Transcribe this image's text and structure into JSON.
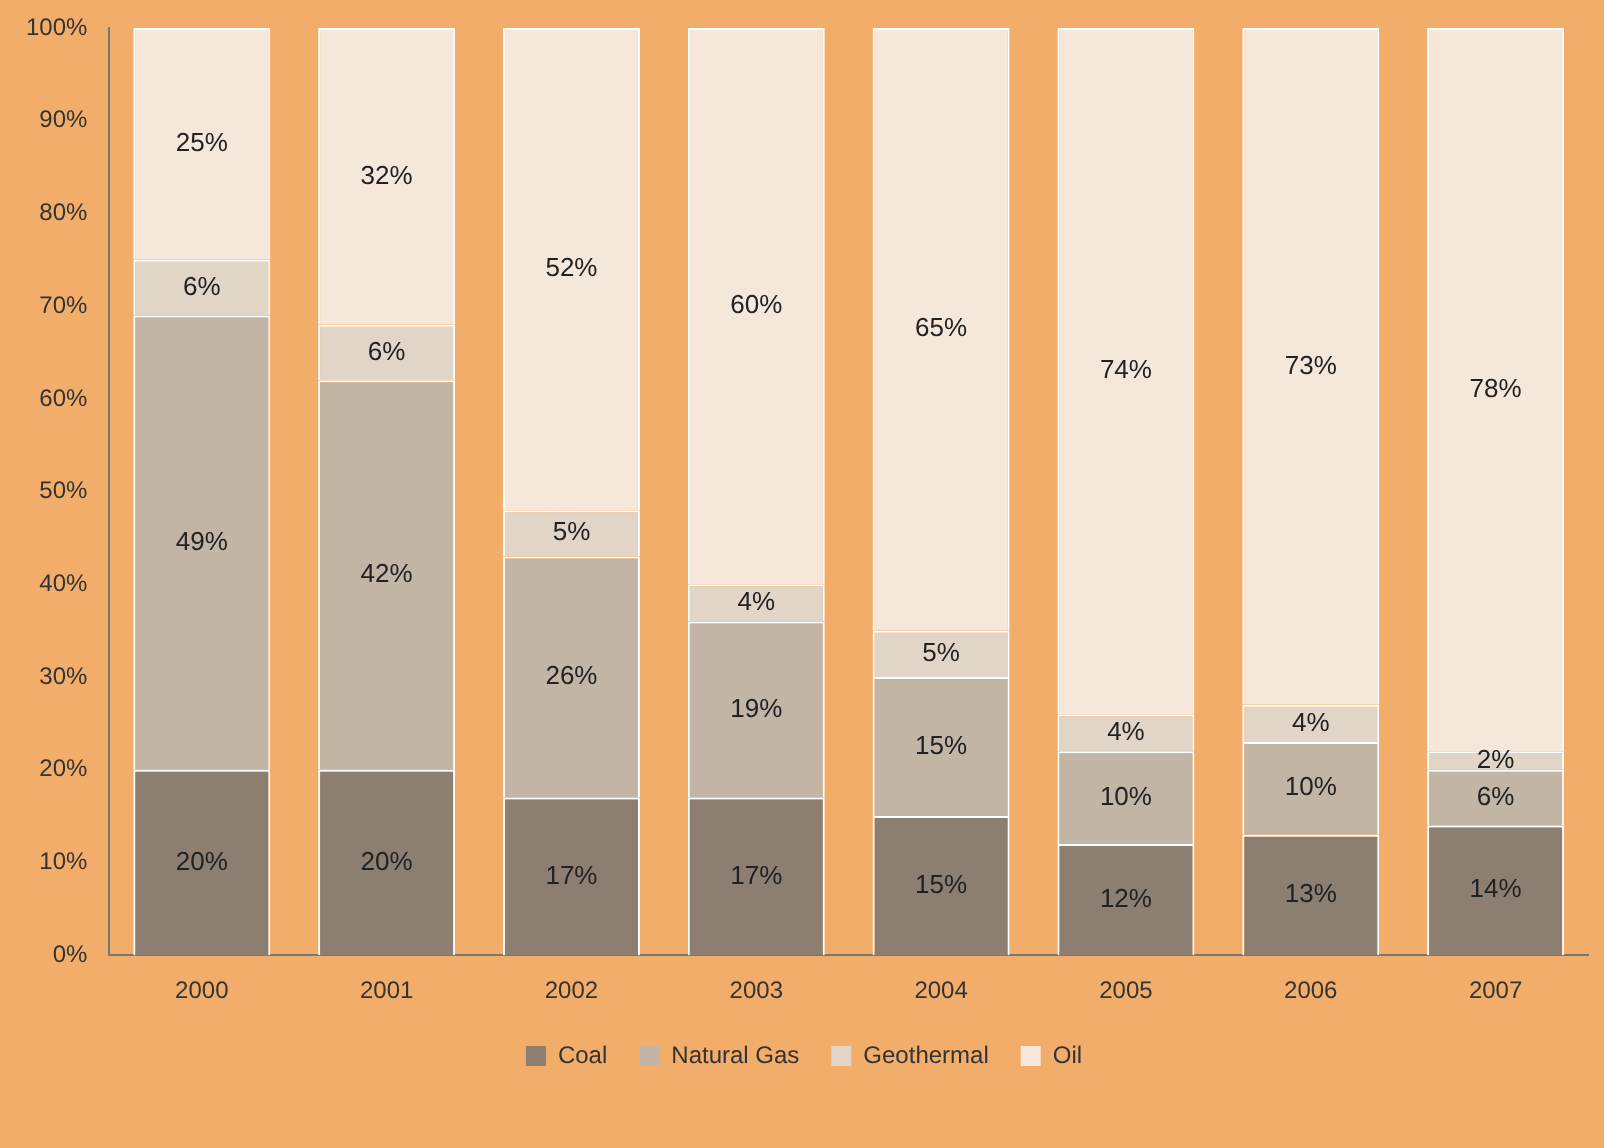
{
  "chart_data": {
    "type": "bar",
    "stacked": true,
    "categories": [
      "2000",
      "2001",
      "2002",
      "2003",
      "2004",
      "2005",
      "2006",
      "2007"
    ],
    "series": [
      {
        "name": "Coal",
        "color": "#8c7f72",
        "values": [
          20,
          20,
          17,
          17,
          15,
          12,
          13,
          14
        ],
        "value_labels": [
          "20%",
          "20%",
          "17%",
          "17%",
          "15%",
          "12%",
          "13%",
          "14%"
        ]
      },
      {
        "name": "Natural Gas",
        "color": "#c2b5a6",
        "values": [
          49,
          42,
          26,
          19,
          15,
          10,
          10,
          6
        ],
        "value_labels": [
          "49%",
          "42%",
          "26%",
          "19%",
          "15%",
          "10%",
          "10%",
          "6%"
        ]
      },
      {
        "name": "Geothermal",
        "color": "#e0d5c7",
        "values": [
          6,
          6,
          5,
          4,
          5,
          4,
          4,
          2
        ],
        "value_labels": [
          "6%",
          "6%",
          "5%",
          "4%",
          "5%",
          "4%",
          "4%",
          "2%"
        ]
      },
      {
        "name": "Oil",
        "color": "#f5e8da",
        "values": [
          25,
          32,
          52,
          60,
          65,
          74,
          73,
          78
        ],
        "value_labels": [
          "25%",
          "32%",
          "52%",
          "60%",
          "65%",
          "74%",
          "73%",
          "78%"
        ]
      }
    ],
    "ylim": [
      0,
      100
    ],
    "yticks": [
      {
        "value": 0,
        "label": "0%"
      },
      {
        "value": 10,
        "label": "10%"
      },
      {
        "value": 20,
        "label": "20%"
      },
      {
        "value": 30,
        "label": "30%"
      },
      {
        "value": 40,
        "label": "40%"
      },
      {
        "value": 50,
        "label": "50%"
      },
      {
        "value": 60,
        "label": "60%"
      },
      {
        "value": 70,
        "label": "70%"
      },
      {
        "value": 80,
        "label": "80%"
      },
      {
        "value": 90,
        "label": "90%"
      },
      {
        "value": 100,
        "label": "100%"
      }
    ],
    "grid": false,
    "legend": "bottom"
  }
}
